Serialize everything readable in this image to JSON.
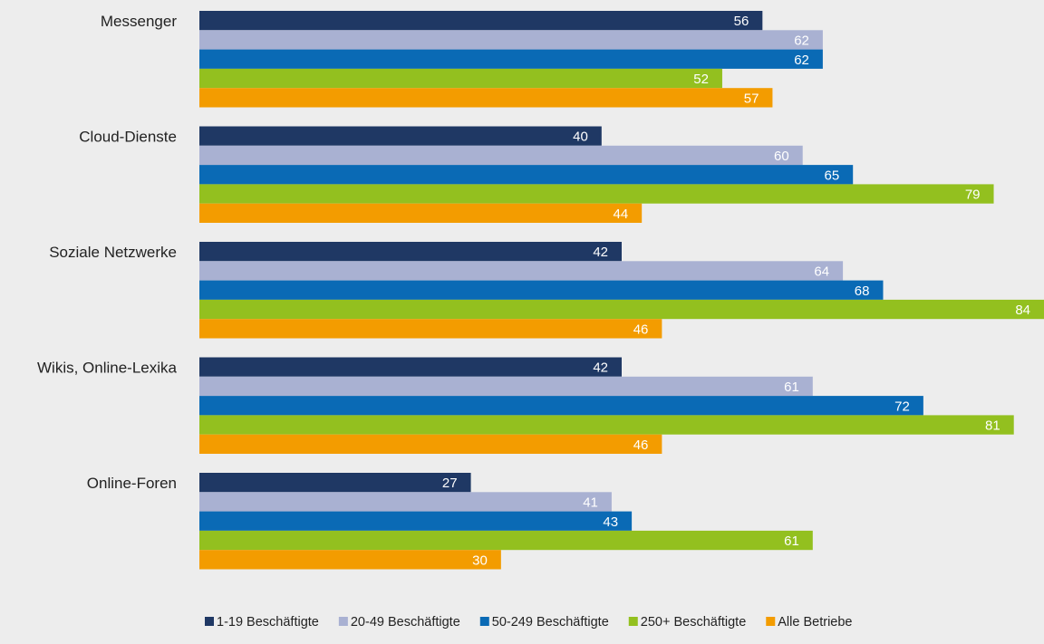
{
  "chart_data": {
    "type": "bar",
    "orientation": "horizontal",
    "title": "",
    "xlabel": "",
    "ylabel": "",
    "xlim": [
      0,
      84
    ],
    "grid": false,
    "legend_position": "bottom",
    "categories": [
      "Messenger",
      "Cloud-Dienste",
      "Soziale Netzwerke",
      "Wikis, Online-Lexika",
      "Online-Foren"
    ],
    "series": [
      {
        "name": "1-19 Beschäftigte",
        "color": "#1f3864",
        "values": [
          56,
          40,
          42,
          42,
          27
        ]
      },
      {
        "name": "20-49 Beschäftigte",
        "color": "#a9b1d2",
        "values": [
          62,
          60,
          64,
          61,
          41
        ]
      },
      {
        "name": "50-249 Beschäftigte",
        "color": "#0a6ab5",
        "values": [
          62,
          65,
          68,
          72,
          43
        ]
      },
      {
        "name": "250+ Beschäftigte",
        "color": "#93c01f",
        "values": [
          52,
          79,
          84,
          81,
          61
        ]
      },
      {
        "name": "Alle Betriebe",
        "color": "#f39c00",
        "values": [
          57,
          44,
          46,
          46,
          30
        ]
      }
    ]
  }
}
